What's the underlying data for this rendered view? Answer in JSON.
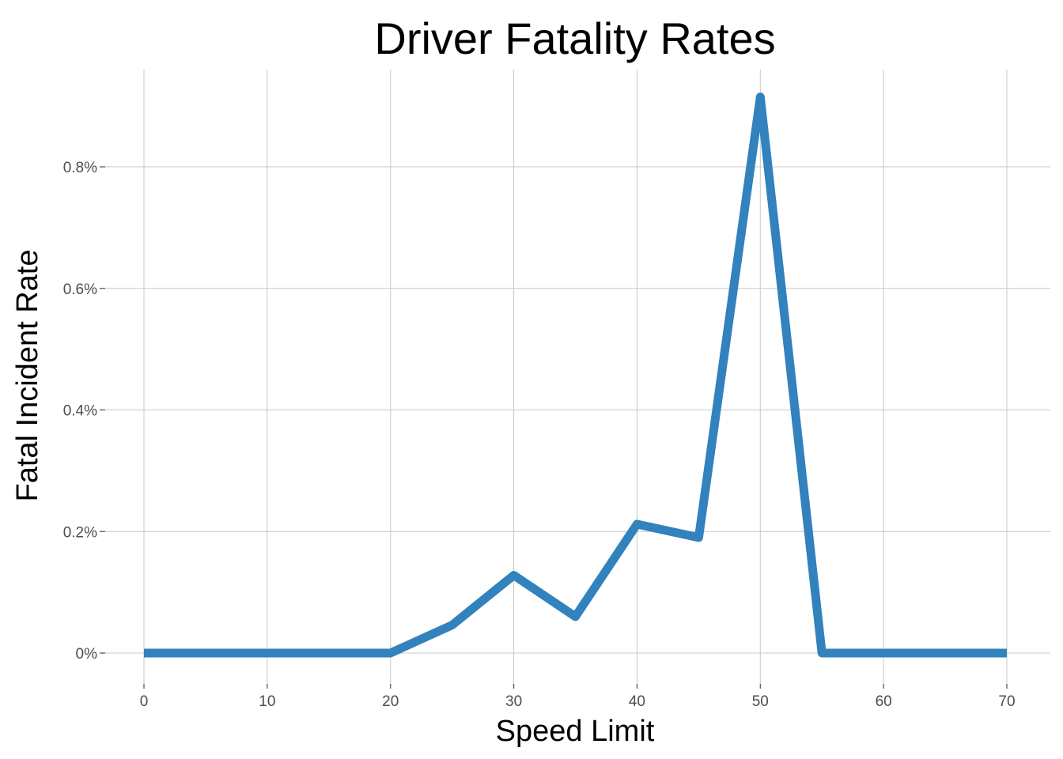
{
  "chart_data": {
    "type": "line",
    "title": "Driver Fatality Rates",
    "xlabel": "Speed Limit",
    "ylabel": "Fatal Incident Rate",
    "xlim": [
      0,
      70
    ],
    "ylim": [
      0,
      0.0092
    ],
    "x_ticks": [
      0,
      10,
      20,
      30,
      40,
      50,
      60,
      70
    ],
    "x_tick_labels": [
      "0",
      "10",
      "20",
      "30",
      "40",
      "50",
      "60",
      "70"
    ],
    "y_ticks": [
      0,
      0.002,
      0.004,
      0.006,
      0.008
    ],
    "y_tick_labels": [
      "0%",
      "0.2%",
      "0.4%",
      "0.6%",
      "0.8%"
    ],
    "grid": true,
    "series": [
      {
        "color": "#3182bd",
        "x": [
          0,
          5,
          10,
          15,
          20,
          25,
          30,
          35,
          40,
          45,
          50,
          55,
          60,
          65,
          70
        ],
        "y": [
          0,
          0,
          0,
          0,
          0,
          0.00046,
          0.00128,
          0.0006,
          0.00212,
          0.0019,
          0.00915,
          0,
          0,
          0,
          0
        ]
      }
    ]
  }
}
